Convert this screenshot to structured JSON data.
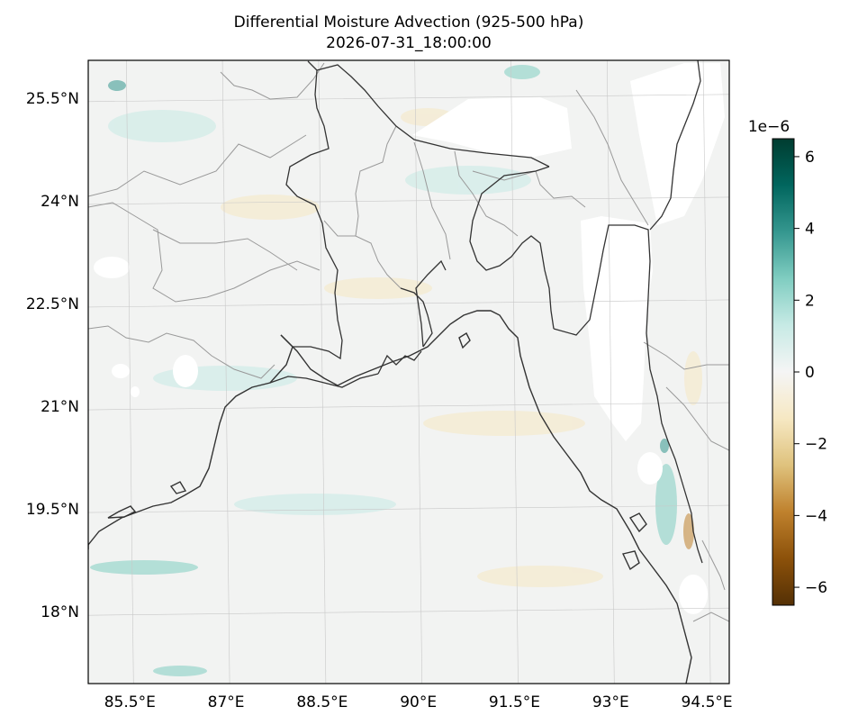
{
  "title_line1": "Differential Moisture Advection (925-500 hPa)",
  "title_line2": "2026-07-31_18:00:00",
  "map": {
    "lon_range": [
      84.85,
      94.85
    ],
    "lat_range": [
      16.95,
      26.05
    ],
    "lat_ticks": [
      {
        "value": 25.5,
        "label": "25.5°N"
      },
      {
        "value": 24.0,
        "label": "24°N"
      },
      {
        "value": 22.5,
        "label": "22.5°N"
      },
      {
        "value": 21.0,
        "label": "21°N"
      },
      {
        "value": 19.5,
        "label": "19.5°N"
      },
      {
        "value": 18.0,
        "label": "18°N"
      }
    ],
    "lon_ticks": [
      {
        "value": 85.5,
        "label": "85.5°E"
      },
      {
        "value": 87.0,
        "label": "87°E"
      },
      {
        "value": 88.5,
        "label": "88.5°E"
      },
      {
        "value": 90.0,
        "label": "90°E"
      },
      {
        "value": 91.5,
        "label": "91.5°E"
      },
      {
        "value": 93.0,
        "label": "93°E"
      },
      {
        "value": 94.5,
        "label": "94.5°E"
      }
    ],
    "gridlines": true,
    "background_color": "#f2f3f2",
    "coastline_color": "#333333",
    "border_color": "#999999"
  },
  "colorbar": {
    "cmap": "BrBG",
    "range": [
      -6.5,
      6.5
    ],
    "multiplier": "1e−6",
    "placement": "right",
    "ticks": [
      {
        "value": 6,
        "label": "6"
      },
      {
        "value": 4,
        "label": "4"
      },
      {
        "value": 2,
        "label": "2"
      },
      {
        "value": 0,
        "label": "0"
      },
      {
        "value": -2,
        "label": "−2"
      },
      {
        "value": -4,
        "label": "−4"
      },
      {
        "value": -6,
        "label": "−6"
      }
    ],
    "stops": [
      "#543005",
      "#8c510a",
      "#bf812d",
      "#dfc27d",
      "#f6e8c3",
      "#f5f5f5",
      "#c7eae5",
      "#80cdc1",
      "#35978f",
      "#01665e",
      "#003c30"
    ]
  }
}
